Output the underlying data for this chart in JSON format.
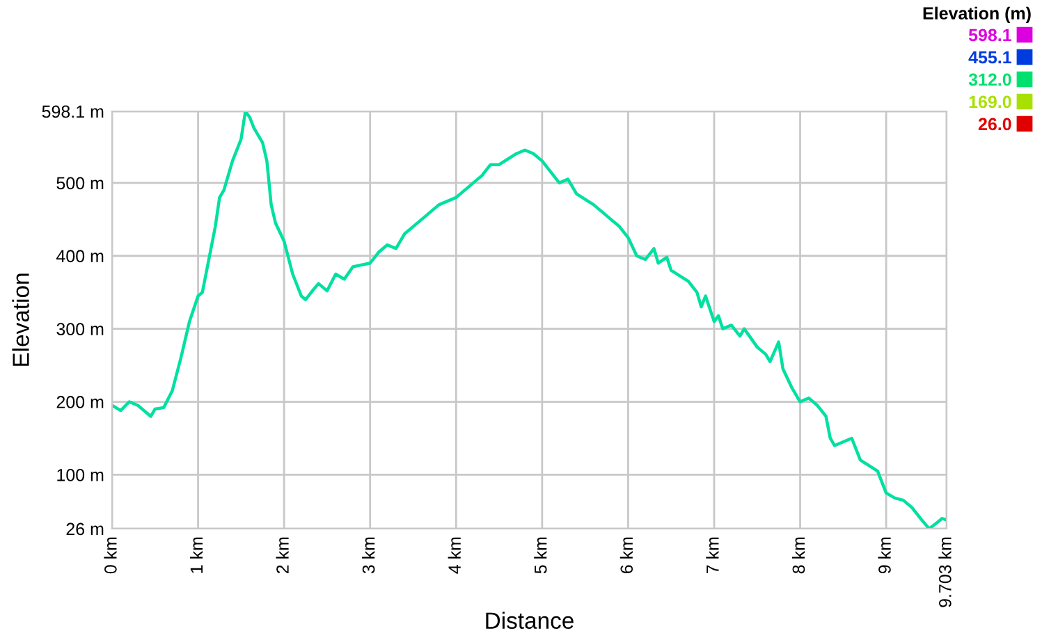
{
  "chart_data": {
    "type": "line",
    "xlabel": "Distance",
    "ylabel": "Elevation",
    "clabel": "Elevation (m)",
    "xlim": [
      0,
      9.703
    ],
    "ylim": [
      26,
      598.1
    ],
    "xticks": [
      {
        "value": 0,
        "label": "0 km"
      },
      {
        "value": 1,
        "label": "1 km"
      },
      {
        "value": 2,
        "label": "2 km"
      },
      {
        "value": 3,
        "label": "3 km"
      },
      {
        "value": 4,
        "label": "4 km"
      },
      {
        "value": 5,
        "label": "5 km"
      },
      {
        "value": 6,
        "label": "6 km"
      },
      {
        "value": 7,
        "label": "7 km"
      },
      {
        "value": 8,
        "label": "8 km"
      },
      {
        "value": 9,
        "label": "9 km"
      },
      {
        "value": 9.703,
        "label": "9.703 km"
      }
    ],
    "yticks": [
      {
        "value": 26,
        "label": "26 m"
      },
      {
        "value": 100,
        "label": "100 m"
      },
      {
        "value": 200,
        "label": "200 m"
      },
      {
        "value": 300,
        "label": "300 m"
      },
      {
        "value": 400,
        "label": "400 m"
      },
      {
        "value": 500,
        "label": "500 m"
      },
      {
        "value": 598.1,
        "label": "598.1 m"
      }
    ],
    "clim": [
      26,
      598.1
    ],
    "cticks": [
      {
        "value": 598.1,
        "label": "598.1"
      },
      {
        "value": 455.1,
        "label": "455.1"
      },
      {
        "value": 312,
        "label": "312.0"
      },
      {
        "value": 169,
        "label": "169.0"
      },
      {
        "value": 26,
        "label": "26.0"
      }
    ],
    "grid": true,
    "marker": "none",
    "line_style": "solid",
    "series": [
      {
        "x": [
          0,
          0.1,
          0.2,
          0.3,
          0.4,
          0.45,
          0.5,
          0.6,
          0.7,
          0.8,
          0.9,
          1.0,
          1.05,
          1.1,
          1.2,
          1.25,
          1.3,
          1.4,
          1.45,
          1.5,
          1.55,
          1.6,
          1.65,
          1.75,
          1.8,
          1.85,
          1.9,
          2.0,
          2.1,
          2.2,
          2.25,
          2.35,
          2.4,
          2.5,
          2.6,
          2.7,
          2.8,
          3.0,
          3.1,
          3.2,
          3.3,
          3.4,
          3.6,
          3.8,
          4.0,
          4.1,
          4.3,
          4.4,
          4.5,
          4.7,
          4.8,
          4.9,
          5.0,
          5.1,
          5.2,
          5.3,
          5.4,
          5.6,
          5.8,
          5.9,
          6.0,
          6.1,
          6.2,
          6.3,
          6.35,
          6.45,
          6.5,
          6.7,
          6.8,
          6.85,
          6.9,
          7.0,
          7.05,
          7.1,
          7.2,
          7.3,
          7.35,
          7.5,
          7.6,
          7.65,
          7.75,
          7.8,
          7.9,
          8.0,
          8.1,
          8.2,
          8.3,
          8.35,
          8.4,
          8.5,
          8.6,
          8.7,
          8.9,
          9.0,
          9.1,
          9.2,
          9.3,
          9.4,
          9.5,
          9.6,
          9.65,
          9.703
        ],
        "values": [
          195,
          188,
          200,
          195,
          185,
          180,
          190,
          192,
          215,
          260,
          310,
          345,
          350,
          380,
          440,
          480,
          490,
          530,
          545,
          560,
          598,
          590,
          575,
          555,
          530,
          470,
          445,
          420,
          375,
          345,
          340,
          355,
          362,
          352,
          375,
          368,
          385,
          390,
          405,
          415,
          410,
          430,
          450,
          470,
          480,
          490,
          510,
          525,
          525,
          540,
          545,
          540,
          530,
          515,
          500,
          505,
          485,
          470,
          450,
          440,
          425,
          400,
          395,
          410,
          390,
          398,
          380,
          365,
          350,
          330,
          345,
          310,
          318,
          300,
          305,
          290,
          300,
          275,
          265,
          255,
          282,
          245,
          220,
          200,
          205,
          195,
          180,
          150,
          140,
          145,
          150,
          120,
          105,
          75,
          68,
          65,
          55,
          40,
          26,
          35,
          40,
          38
        ]
      }
    ]
  }
}
